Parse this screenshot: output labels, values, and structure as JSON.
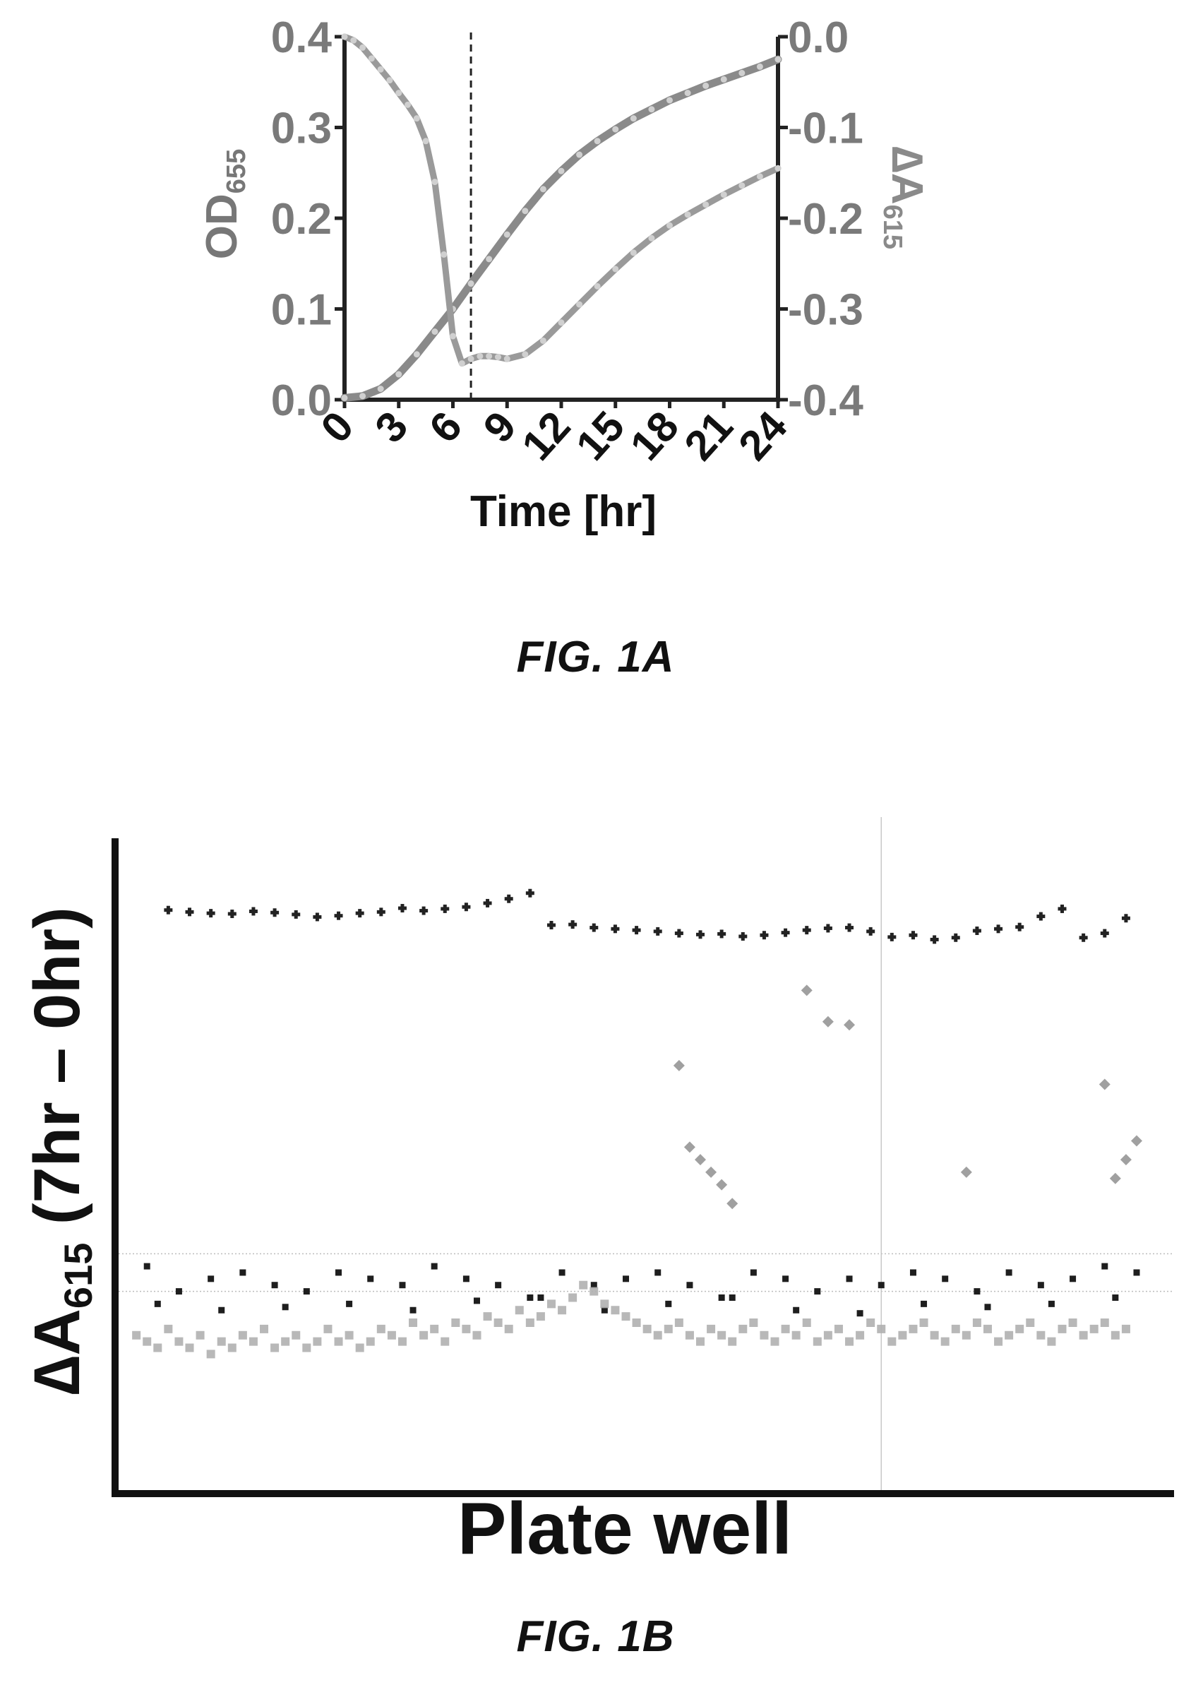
{
  "figures": {
    "fig1a_caption": "FIG. 1A",
    "fig1b_caption": "FIG. 1B"
  },
  "chart_data": [
    {
      "type": "line",
      "xlabel": "Time [hr]",
      "ylabel_left": "OD",
      "ylabel_left_sub": "655",
      "ylabel_right": "∆A",
      "ylabel_right_sub": "615",
      "x_ticks": [
        "0",
        "3",
        "6",
        "9",
        "12",
        "15",
        "18",
        "21",
        "24"
      ],
      "y_left_ticks": [
        "0.0",
        "0.1",
        "0.2",
        "0.3",
        "0.4"
      ],
      "y_right_ticks": [
        "-0.4",
        "-0.3",
        "-0.2",
        "-0.1",
        "0.0"
      ],
      "xlim": [
        0,
        24
      ],
      "ylim_left": [
        0,
        0.4
      ],
      "ylim_right": [
        -0.4,
        0
      ],
      "vertical_marker_x": 7,
      "series": [
        {
          "axis": "left",
          "color": "#8a8a8a",
          "x": [
            0,
            1,
            2,
            3,
            4,
            5,
            6,
            7,
            8,
            9,
            10,
            11,
            12,
            13,
            14,
            15,
            16,
            17,
            18,
            19,
            20,
            21,
            22,
            23,
            24
          ],
          "y": [
            0.002,
            0.004,
            0.012,
            0.028,
            0.05,
            0.075,
            0.1,
            0.128,
            0.155,
            0.182,
            0.208,
            0.232,
            0.252,
            0.27,
            0.285,
            0.298,
            0.31,
            0.32,
            0.33,
            0.338,
            0.346,
            0.353,
            0.36,
            0.367,
            0.375
          ]
        },
        {
          "axis": "right",
          "color": "#9a9a9a",
          "x": [
            0,
            0.5,
            1,
            1.5,
            2,
            2.5,
            3,
            3.5,
            4,
            4.5,
            5,
            5.5,
            6,
            6.5,
            7,
            7.5,
            8,
            8.5,
            9,
            10,
            11,
            12,
            13,
            14,
            15,
            16,
            17,
            18,
            19,
            20,
            21,
            22,
            23,
            24
          ],
          "y": [
            0,
            -0.004,
            -0.012,
            -0.024,
            -0.036,
            -0.048,
            -0.062,
            -0.075,
            -0.09,
            -0.115,
            -0.16,
            -0.24,
            -0.33,
            -0.36,
            -0.355,
            -0.352,
            -0.352,
            -0.353,
            -0.355,
            -0.35,
            -0.335,
            -0.315,
            -0.295,
            -0.275,
            -0.256,
            -0.238,
            -0.222,
            -0.208,
            -0.196,
            -0.185,
            -0.174,
            -0.164,
            -0.154,
            -0.145
          ]
        }
      ]
    },
    {
      "type": "scatter",
      "xlabel": "Plate well",
      "ylabel": "∆A",
      "ylabel_sub": "615",
      "ylabel_suffix": " (7hr – 0hr)",
      "xlim": [
        0,
        96
      ],
      "ylim": [
        0,
        100
      ],
      "threshold_lines": [
        30,
        36
      ],
      "verticals": [
        72,
        101
      ],
      "series": [
        {
          "name": "",
          "color": "#222222",
          "marker": "plus",
          "x": [
            5,
            7,
            9,
            11,
            13,
            15,
            17,
            19,
            21,
            23,
            25,
            27,
            29,
            31,
            33,
            35,
            37,
            39,
            41,
            43,
            45,
            47,
            49,
            51,
            53,
            55,
            57,
            59,
            61,
            63,
            65,
            67,
            69,
            71,
            73,
            75,
            77,
            79,
            81,
            83,
            85,
            87,
            89,
            91,
            93,
            95
          ],
          "y": [
            90.8,
            90.5,
            90.3,
            90.2,
            90.6,
            90.4,
            90.1,
            89.7,
            89.9,
            90.3,
            90.5,
            91.1,
            90.7,
            91.0,
            91.3,
            91.9,
            92.6,
            93.5,
            88.4,
            88.5,
            88.0,
            87.8,
            87.6,
            87.4,
            87.1,
            86.9,
            87.0,
            86.6,
            86.8,
            87.2,
            87.6,
            87.9,
            88.0,
            87.4,
            86.5,
            86.8,
            86.1,
            86.4,
            87.5,
            87.8,
            88.1,
            89.8,
            91.0,
            86.4,
            87.1,
            89.5
          ]
        },
        {
          "name": "",
          "color": "#a0a0a0",
          "marker": "diamond",
          "x": [
            65,
            67,
            69,
            53,
            80,
            93,
            54,
            55,
            56,
            57,
            58,
            94,
            95,
            96
          ],
          "y": [
            78,
            73,
            72.5,
            66,
            49,
            63,
            53,
            51,
            49,
            47,
            44,
            48,
            51,
            54
          ]
        },
        {
          "name": "",
          "color": "#1e1e1e",
          "marker": "square",
          "x": [
            3,
            6,
            9,
            12,
            15,
            18,
            21,
            24,
            27,
            30,
            33,
            36,
            39,
            42,
            45,
            48,
            51,
            54,
            57,
            60,
            63,
            66,
            69,
            72,
            75,
            78,
            81,
            84,
            87,
            90,
            93,
            96,
            4,
            10,
            16,
            22,
            28,
            34,
            40,
            46,
            52,
            58,
            64,
            70,
            76,
            82,
            88,
            94
          ],
          "y": [
            34,
            30,
            32,
            33,
            31,
            30,
            33,
            32,
            31,
            34,
            32,
            31,
            29,
            33,
            31,
            32,
            33,
            31,
            29,
            33,
            32,
            30,
            32,
            31,
            33,
            32,
            30,
            33,
            31,
            32,
            34,
            33,
            28,
            27,
            27.5,
            28,
            27,
            28.5,
            29,
            27,
            28,
            29,
            27,
            26.5,
            28,
            27.5,
            28,
            29
          ]
        },
        {
          "name": "",
          "color": "#b0b0b0",
          "marker": "square",
          "x": [
            2,
            3,
            4,
            5,
            6,
            7,
            8,
            9,
            10,
            11,
            12,
            13,
            14,
            15,
            16,
            17,
            18,
            19,
            20,
            21,
            22,
            23,
            24,
            25,
            26,
            27,
            28,
            29,
            30,
            31,
            32,
            33,
            34,
            35,
            36,
            37,
            38,
            39,
            40,
            41,
            42,
            43,
            44,
            45,
            46,
            47,
            48,
            49,
            50,
            51,
            52,
            53,
            54,
            55,
            56,
            57,
            58,
            59,
            60,
            61,
            62,
            63,
            64,
            65,
            66,
            67,
            68,
            69,
            70,
            71,
            72,
            73,
            74,
            75,
            76,
            77,
            78,
            79,
            80,
            81,
            82,
            83,
            84,
            85,
            86,
            87,
            88,
            89,
            90,
            91,
            92,
            93,
            94,
            95
          ],
          "y": [
            23,
            22,
            21,
            24,
            22,
            21,
            23,
            20,
            22,
            21,
            23,
            22,
            24,
            21,
            22,
            23,
            21,
            22,
            24,
            22,
            23,
            21,
            22,
            24,
            23,
            22,
            25,
            23,
            24,
            22,
            25,
            24,
            23,
            26,
            25,
            24,
            27,
            25,
            26,
            28,
            27,
            29,
            31,
            30,
            28,
            27,
            26,
            25,
            24,
            23,
            24,
            25,
            23,
            22,
            24,
            23,
            22,
            24,
            25,
            23,
            22,
            24,
            23,
            25,
            22,
            23,
            24,
            22,
            23,
            25,
            24,
            22,
            23,
            24,
            25,
            23,
            22,
            24,
            23,
            25,
            24,
            22,
            23,
            24,
            25,
            23,
            22,
            24,
            25,
            23,
            24,
            25,
            23,
            24
          ]
        }
      ]
    }
  ]
}
